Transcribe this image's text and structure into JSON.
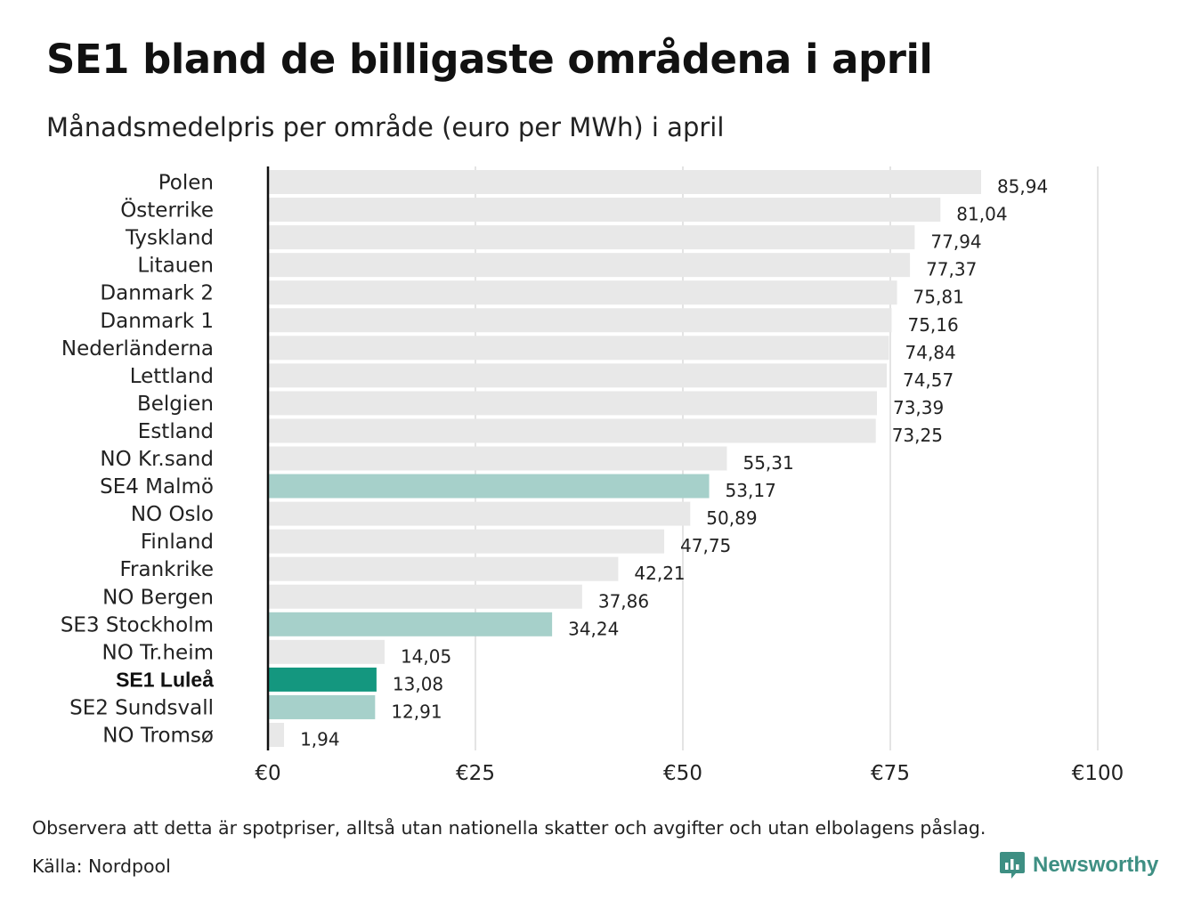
{
  "title": "SE1 bland de billigaste områdena i april",
  "subtitle": "Månadsmedelpris per område (euro per MWh) i april",
  "footnote": "Observera att detta är spotpriser, alltså utan nationella skatter och avgifter och utan elbolagens påslag.",
  "source": "Källa: Nordpool",
  "brand": {
    "name": "Newsworthy",
    "icon": "newsworthy-logo-icon"
  },
  "colors": {
    "default_bar": "#e8e8e8",
    "swedish_bar": "#a6d0ca",
    "highlight_bar": "#14977f",
    "grid": "#c8c8c8",
    "baseline": "#111111",
    "brand": "#3e8f83"
  },
  "chart_data": {
    "type": "bar",
    "orientation": "horizontal",
    "categories": [
      "Polen",
      "Österrike",
      "Tyskland",
      "Litauen",
      "Danmark 2",
      "Danmark 1",
      "Nederländerna",
      "Lettland",
      "Belgien",
      "Estland",
      "NO Kr.sand",
      "SE4 Malmö",
      "NO Oslo",
      "Finland",
      "Frankrike",
      "NO Bergen",
      "SE3 Stockholm",
      "NO Tr.heim",
      "SE1 Luleå",
      "SE2 Sundsvall",
      "NO Tromsø"
    ],
    "values": [
      85.94,
      81.04,
      77.94,
      77.37,
      75.81,
      75.16,
      74.84,
      74.57,
      73.39,
      73.25,
      55.31,
      53.17,
      50.89,
      47.75,
      42.21,
      37.86,
      34.24,
      14.05,
      13.08,
      12.91,
      1.94
    ],
    "value_labels": [
      "85,94",
      "81,04",
      "77,94",
      "77,37",
      "75,81",
      "75,16",
      "74,84",
      "74,57",
      "73,39",
      "73,25",
      "55,31",
      "53,17",
      "50,89",
      "47,75",
      "42,21",
      "37,86",
      "34,24",
      "14,05",
      "13,08",
      "12,91",
      "1,94"
    ],
    "bar_roles": [
      "other",
      "other",
      "other",
      "other",
      "other",
      "other",
      "other",
      "other",
      "other",
      "other",
      "other",
      "swedish",
      "other",
      "other",
      "other",
      "other",
      "swedish",
      "other",
      "highlight",
      "swedish",
      "other"
    ],
    "xlim": [
      0,
      100
    ],
    "x_ticks": [
      0,
      25,
      50,
      75,
      100
    ],
    "x_tick_labels": [
      "€0",
      "€25",
      "€50",
      "€75",
      "€100"
    ],
    "grid": true,
    "legend": "none"
  }
}
